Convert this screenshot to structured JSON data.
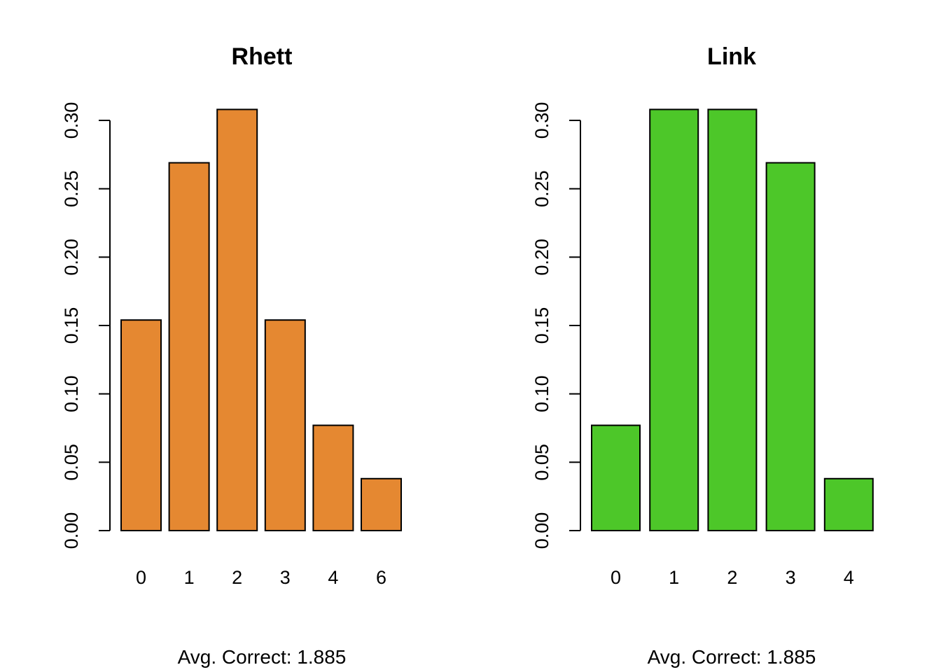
{
  "chart_data": [
    {
      "type": "bar",
      "title": "Rhett",
      "xlabel": "Avg. Correct: 1.885",
      "ylabel": "",
      "categories": [
        "0",
        "1",
        "2",
        "3",
        "4",
        "6"
      ],
      "values": [
        0.154,
        0.269,
        0.308,
        0.154,
        0.077,
        0.038
      ],
      "ylim": [
        0,
        0.3
      ],
      "yticks": [
        "0.00",
        "0.05",
        "0.10",
        "0.15",
        "0.20",
        "0.25",
        "0.30"
      ],
      "bar_color": "#E58831",
      "grid": false
    },
    {
      "type": "bar",
      "title": "Link",
      "xlabel": "Avg. Correct: 1.885",
      "ylabel": "",
      "categories": [
        "0",
        "1",
        "2",
        "3",
        "4"
      ],
      "values": [
        0.077,
        0.308,
        0.308,
        0.269,
        0.038
      ],
      "ylim": [
        0,
        0.3
      ],
      "yticks": [
        "0.00",
        "0.05",
        "0.10",
        "0.15",
        "0.20",
        "0.25",
        "0.30"
      ],
      "bar_color": "#4DC729",
      "grid": false
    }
  ]
}
